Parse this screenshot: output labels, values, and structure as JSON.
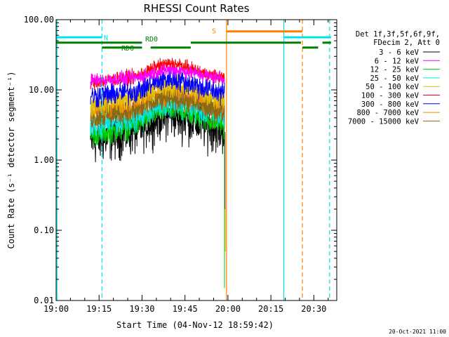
{
  "chart_data": {
    "type": "line",
    "title": "RHESSI Count Rates",
    "xlabel": "Start Time (04-Nov-12 18:59:42)",
    "ylabel": "Count Rate (s⁻¹ detector segment⁻¹)",
    "x_unit": "minutes of day (UT)",
    "xlim": [
      1140,
      1238
    ],
    "xticks": [
      {
        "v": 1140,
        "label": "19:00"
      },
      {
        "v": 1155,
        "label": "19:15"
      },
      {
        "v": 1170,
        "label": "19:30"
      },
      {
        "v": 1185,
        "label": "19:45"
      },
      {
        "v": 1200,
        "label": "20:00"
      },
      {
        "v": 1215,
        "label": "20:15"
      },
      {
        "v": 1230,
        "label": "20:30"
      }
    ],
    "yscale": "log",
    "ylim": [
      0.01,
      100
    ],
    "yticks": [
      {
        "v": 0.01,
        "label": "0.01"
      },
      {
        "v": 0.1,
        "label": "0.10"
      },
      {
        "v": 1,
        "label": "1.00"
      },
      {
        "v": 10,
        "label": "10.00"
      },
      {
        "v": 100,
        "label": "100.00"
      }
    ],
    "legend_header": [
      "Det 1f,3f,5f,6f,9f,",
      "FDecim 2, Att 0"
    ],
    "legend_position": "right",
    "data_x_range": [
      1152,
      1198.8
    ],
    "series": [
      {
        "name": "3 - 6 keV",
        "color": "#000000",
        "x": [
          1152,
          1160,
          1168,
          1172,
          1176,
          1180,
          1184,
          1188,
          1192,
          1196,
          1198.8
        ],
        "values": [
          1.8,
          2.2,
          2.6,
          3.3,
          4.1,
          4.4,
          4.1,
          3.6,
          3.1,
          2.8,
          2.6
        ]
      },
      {
        "name": "6 - 12 keV",
        "color": "#ff00ff",
        "x": [
          1152,
          1160,
          1168,
          1172,
          1176,
          1180,
          1184,
          1188,
          1192,
          1196,
          1198.8
        ],
        "values": [
          13.5,
          14.2,
          14.8,
          16.5,
          18.5,
          19.5,
          18.8,
          17.5,
          16.0,
          15.0,
          14.6
        ]
      },
      {
        "name": "12 - 25 keV",
        "color": "#00cc00",
        "x": [
          1152,
          1160,
          1168,
          1172,
          1176,
          1180,
          1184,
          1188,
          1192,
          1196,
          1198.8
        ],
        "values": [
          2.2,
          2.6,
          3.1,
          4.0,
          5.0,
          5.3,
          5.0,
          4.4,
          3.8,
          3.4,
          3.2
        ]
      },
      {
        "name": "25 - 50 keV",
        "color": "#00e5e5",
        "x": [
          1152,
          1160,
          1168,
          1172,
          1176,
          1180,
          1184,
          1188,
          1192,
          1196,
          1198.8
        ],
        "values": [
          3.0,
          3.4,
          4.0,
          5.0,
          6.0,
          6.5,
          6.0,
          5.4,
          4.7,
          4.2,
          4.0
        ]
      },
      {
        "name": "50 - 100 keV",
        "color": "#e0c000",
        "x": [
          1152,
          1160,
          1168,
          1172,
          1176,
          1180,
          1184,
          1188,
          1192,
          1196,
          1198.8
        ],
        "values": [
          6.2,
          7.0,
          7.8,
          9.2,
          10.8,
          11.5,
          11.0,
          9.8,
          8.6,
          7.8,
          7.4
        ]
      },
      {
        "name": "100 - 300 keV",
        "color": "#ff0000",
        "x": [
          1152,
          1160,
          1168,
          1172,
          1176,
          1180,
          1184,
          1188,
          1192,
          1196,
          1198.8
        ],
        "values": [
          12.5,
          14.0,
          15.5,
          18.5,
          22.0,
          23.5,
          22.0,
          19.5,
          17.0,
          15.5,
          15.0
        ]
      },
      {
        "name": "300 - 800 keV",
        "color": "#0000ff",
        "x": [
          1152,
          1160,
          1168,
          1172,
          1176,
          1180,
          1184,
          1188,
          1192,
          1196,
          1198.8
        ],
        "values": [
          8.0,
          8.8,
          9.6,
          11.5,
          13.5,
          14.5,
          13.5,
          12.0,
          10.5,
          9.5,
          9.0
        ]
      },
      {
        "name": "800 - 7000 keV",
        "color": "#ff8000",
        "x": [
          1152,
          1160,
          1168,
          1172,
          1176,
          1180,
          1184,
          1188,
          1192,
          1196,
          1198.8
        ],
        "values": [
          4.8,
          5.4,
          6.0,
          7.2,
          8.5,
          9.0,
          8.5,
          7.5,
          6.6,
          6.0,
          5.7
        ]
      },
      {
        "name": "7000 - 15000 keV",
        "color": "#8b6914",
        "x": [
          1152,
          1160,
          1168,
          1172,
          1176,
          1180,
          1184,
          1188,
          1192,
          1196,
          1198.8
        ],
        "values": [
          4.0,
          4.5,
          5.0,
          6.0,
          7.2,
          7.6,
          7.2,
          6.4,
          5.6,
          5.1,
          4.9
        ]
      }
    ],
    "status_bars": [
      {
        "label": "N",
        "color": "#00e5e5",
        "y": 56,
        "segments": [
          [
            1140,
            1156
          ],
          [
            1219.5,
            1236
          ]
        ]
      },
      {
        "label": "S",
        "color": "#ff8000",
        "y": 68,
        "segments": [
          [
            1199.5,
            1226
          ]
        ]
      },
      {
        "label": "RD0",
        "color": "#008000",
        "y": 47,
        "segments": [
          [
            1140,
            1170
          ],
          [
            1187,
            1225.5
          ],
          [
            1233,
            1236
          ]
        ]
      },
      {
        "label": "RD6",
        "color": "#008000",
        "y": 40,
        "segments": [
          [
            1156,
            1170
          ],
          [
            1173,
            1187
          ],
          [
            1226,
            1231.5
          ]
        ]
      }
    ],
    "vertical_markers": [
      {
        "x": 1140.3,
        "color": "#00e5e5",
        "style": "solid"
      },
      {
        "x": 1156,
        "color": "#00e5e5",
        "style": "dashed"
      },
      {
        "x": 1199.5,
        "color": "#ff8000",
        "style": "solid"
      },
      {
        "x": 1219.5,
        "color": "#00e5e5",
        "style": "solid"
      },
      {
        "x": 1226,
        "color": "#ff8000",
        "style": "dashed"
      },
      {
        "x": 1235.5,
        "color": "#00e5e5",
        "style": "dashed"
      }
    ],
    "timestamp": "20-Oct-2021 11:00"
  }
}
